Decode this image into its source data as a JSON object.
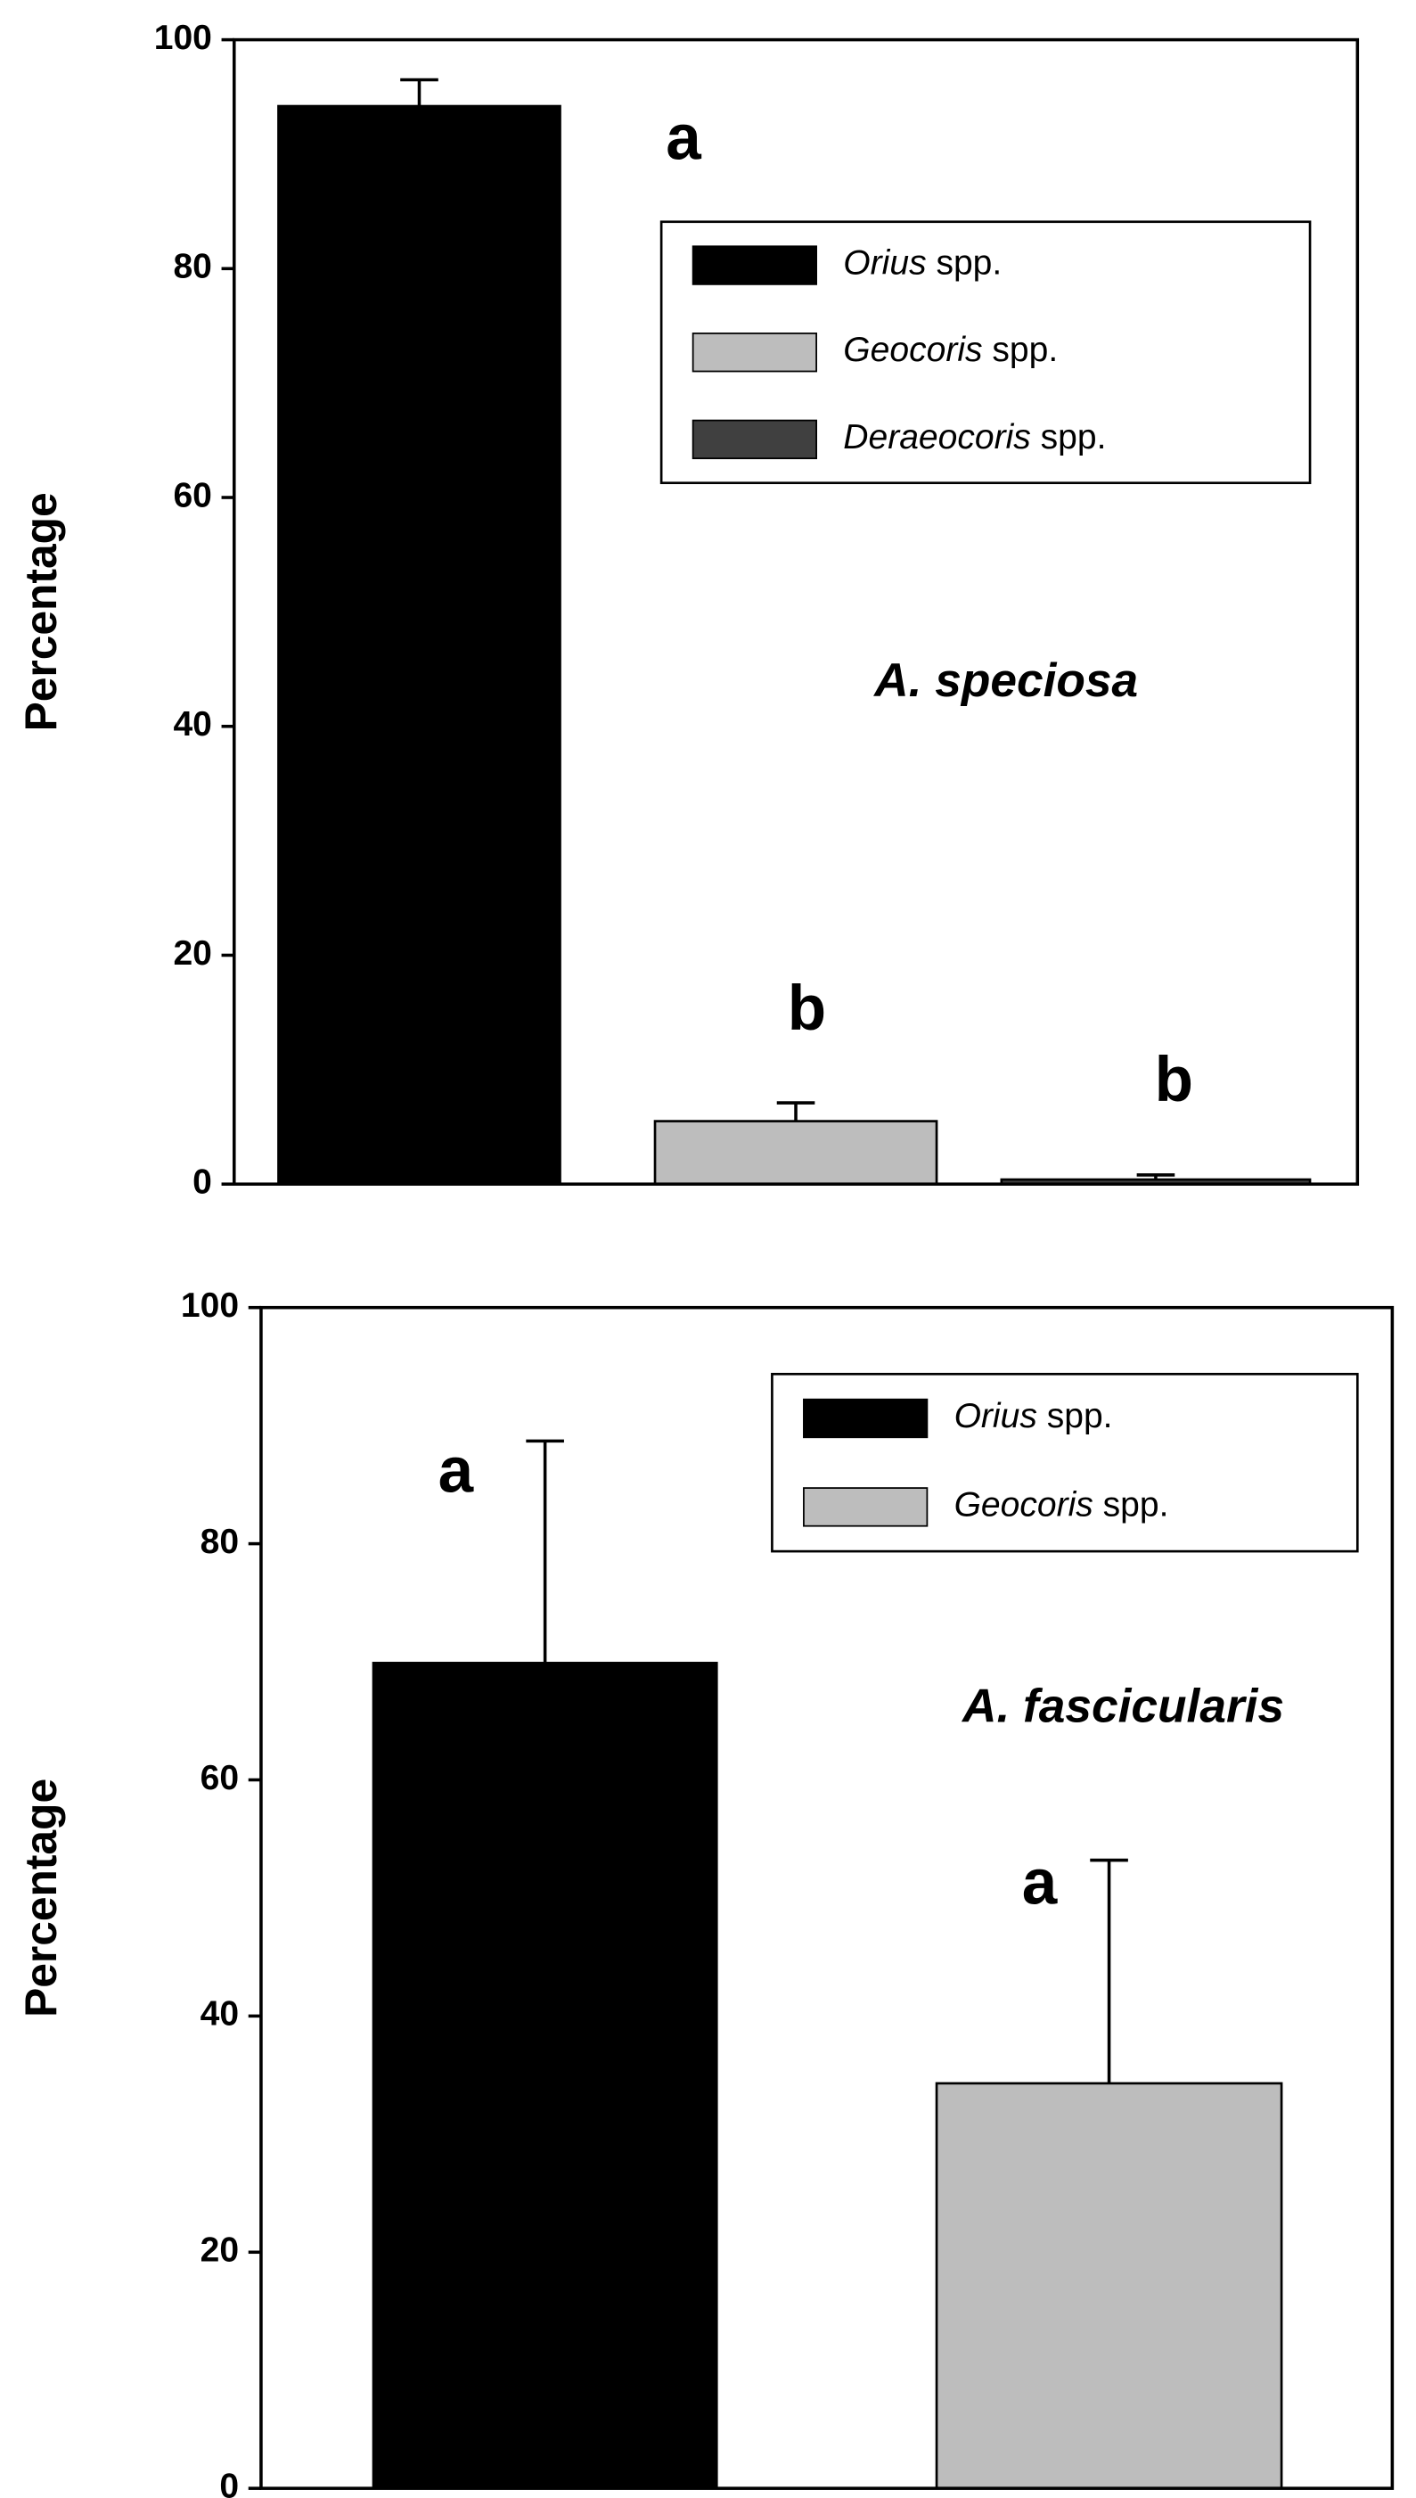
{
  "chart_data": [
    {
      "type": "bar",
      "ylabel": "Percentage",
      "annotation": "A. speciosa",
      "ylim": [
        0,
        100
      ],
      "yticks": [
        0,
        20,
        40,
        60,
        80,
        100
      ],
      "series": [
        {
          "name": "Orius spp.",
          "color": "#000000",
          "values": [
            94.2
          ],
          "errors": [
            2.3
          ],
          "letters": [
            "a"
          ]
        },
        {
          "name": "Geocoris spp.",
          "color": "#bdbdbd",
          "values": [
            5.5
          ],
          "errors": [
            1.6
          ],
          "letters": [
            "b"
          ]
        },
        {
          "name": "Deraeocoris spp.",
          "color": "#404040",
          "values": [
            0.4
          ],
          "errors": [
            0.4
          ],
          "letters": [
            "b"
          ]
        }
      ]
    },
    {
      "type": "bar",
      "ylabel": "Percentage",
      "annotation": "A. fascicularis",
      "ylim": [
        0,
        100
      ],
      "yticks": [
        0,
        20,
        40,
        60,
        80,
        100
      ],
      "series": [
        {
          "name": "Orius spp.",
          "color": "#000000",
          "values": [
            69.9
          ],
          "errors": [
            18.8
          ],
          "letters": [
            "a"
          ]
        },
        {
          "name": "Geocoris spp.",
          "color": "#bdbdbd",
          "values": [
            34.3
          ],
          "errors": [
            18.9
          ],
          "letters": [
            "a"
          ]
        }
      ]
    }
  ]
}
